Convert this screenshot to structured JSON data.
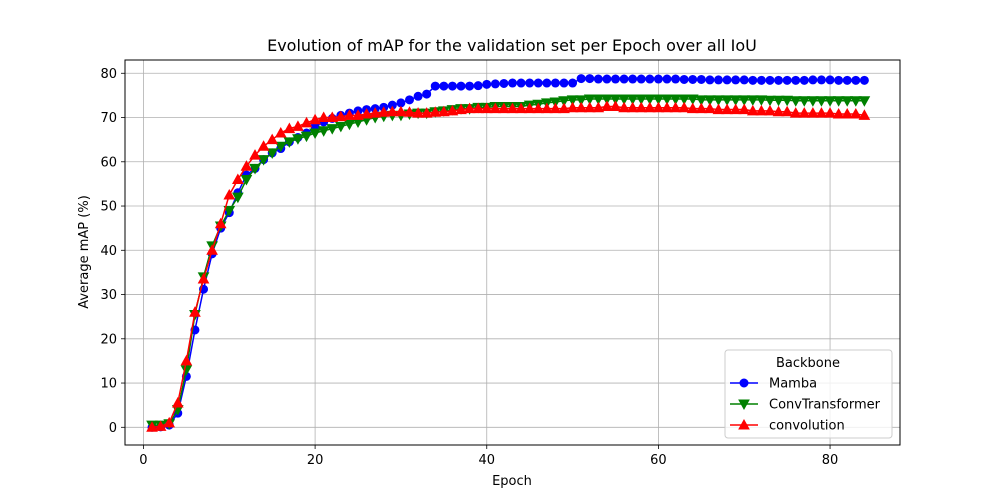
{
  "chart_data": {
    "type": "line",
    "title": "Evolution of mAP for the validation set per Epoch over all IoU",
    "xlabel": "Epoch",
    "ylabel": "Average mAP (%)",
    "xlim": [
      -2.15,
      88.15
    ],
    "ylim": [
      -4.0,
      83.0
    ],
    "xticks": [
      0,
      20,
      40,
      60,
      80
    ],
    "yticks": [
      0,
      10,
      20,
      30,
      40,
      50,
      60,
      70,
      80
    ],
    "grid": true,
    "legend": {
      "title": "Backbone",
      "placement": "lower-right"
    },
    "series": [
      {
        "name": "Mamba",
        "color": "#0000ff",
        "marker": "circle",
        "x": [
          1,
          2,
          3,
          4,
          5,
          6,
          7,
          8,
          9,
          10,
          11,
          12,
          13,
          14,
          15,
          16,
          17,
          18,
          19,
          20,
          21,
          22,
          23,
          24,
          25,
          26,
          27,
          28,
          29,
          30,
          31,
          32,
          33,
          34,
          35,
          36,
          37,
          38,
          39,
          40,
          41,
          42,
          43,
          44,
          45,
          46,
          47,
          48,
          49,
          50,
          51,
          52,
          53,
          54,
          55,
          56,
          57,
          58,
          59,
          60,
          61,
          62,
          63,
          64,
          65,
          66,
          67,
          68,
          69,
          70,
          71,
          72,
          73,
          74,
          75,
          76,
          77,
          78,
          79,
          80,
          81,
          82,
          83,
          84
        ],
        "values": [
          0.0,
          0.1,
          0.5,
          3.2,
          11.5,
          22.0,
          31.2,
          39.2,
          45.0,
          48.5,
          53.0,
          57.0,
          58.5,
          60.5,
          62.0,
          63.0,
          64.5,
          65.5,
          66.5,
          68.0,
          69.0,
          69.8,
          70.5,
          71.0,
          71.5,
          71.8,
          72.0,
          72.3,
          72.8,
          73.3,
          74.0,
          74.8,
          75.3,
          77.1,
          77.1,
          77.1,
          77.1,
          77.1,
          77.2,
          77.5,
          77.6,
          77.7,
          77.8,
          77.8,
          77.8,
          77.8,
          77.8,
          77.8,
          77.8,
          77.8,
          78.8,
          78.8,
          78.7,
          78.7,
          78.7,
          78.7,
          78.7,
          78.7,
          78.7,
          78.7,
          78.7,
          78.7,
          78.6,
          78.6,
          78.6,
          78.5,
          78.5,
          78.5,
          78.5,
          78.5,
          78.4,
          78.4,
          78.4,
          78.4,
          78.4,
          78.4,
          78.4,
          78.5,
          78.5,
          78.5,
          78.4,
          78.4,
          78.4,
          78.4
        ]
      },
      {
        "name": "ConvTransformer",
        "color": "#008000",
        "marker": "triangle-down",
        "x": [
          1,
          2,
          3,
          4,
          5,
          6,
          7,
          8,
          9,
          10,
          11,
          12,
          13,
          14,
          15,
          16,
          17,
          18,
          19,
          20,
          21,
          22,
          23,
          24,
          25,
          26,
          27,
          28,
          29,
          30,
          31,
          32,
          33,
          34,
          35,
          36,
          37,
          38,
          39,
          40,
          41,
          42,
          43,
          44,
          45,
          46,
          47,
          48,
          49,
          50,
          51,
          52,
          53,
          54,
          55,
          56,
          57,
          58,
          59,
          60,
          61,
          62,
          63,
          64,
          65,
          66,
          67,
          68,
          69,
          70,
          71,
          72,
          73,
          74,
          75,
          76,
          77,
          78,
          79,
          80,
          81,
          82,
          83,
          84
        ],
        "values": [
          0.5,
          0.5,
          0.8,
          4.0,
          13.0,
          25.5,
          34.0,
          41.0,
          45.5,
          49.0,
          52.0,
          56.0,
          58.5,
          60.5,
          62.0,
          63.5,
          64.5,
          65.2,
          65.8,
          66.5,
          67.0,
          67.5,
          68.0,
          68.5,
          69.0,
          69.5,
          70.0,
          70.3,
          70.5,
          70.5,
          70.8,
          71.0,
          71.0,
          71.3,
          71.5,
          71.8,
          72.0,
          72.0,
          72.3,
          72.3,
          72.5,
          72.5,
          72.5,
          72.5,
          72.8,
          73.0,
          73.3,
          73.5,
          73.8,
          74.0,
          74.0,
          74.2,
          74.2,
          74.2,
          74.2,
          74.2,
          74.2,
          74.2,
          74.2,
          74.2,
          74.2,
          74.2,
          74.2,
          74.2,
          74.0,
          74.0,
          74.0,
          74.0,
          74.0,
          74.0,
          74.0,
          74.0,
          73.9,
          73.9,
          73.9,
          73.8,
          73.8,
          73.8,
          73.8,
          73.8,
          73.8,
          73.8,
          73.8,
          73.8
        ]
      },
      {
        "name": "convolution",
        "color": "#ff0000",
        "marker": "triangle-up",
        "x": [
          1,
          2,
          3,
          4,
          5,
          6,
          7,
          8,
          9,
          10,
          11,
          12,
          13,
          14,
          15,
          16,
          17,
          18,
          19,
          20,
          21,
          22,
          23,
          24,
          25,
          26,
          27,
          28,
          29,
          30,
          31,
          32,
          33,
          34,
          35,
          36,
          37,
          38,
          39,
          40,
          41,
          42,
          43,
          44,
          45,
          46,
          47,
          48,
          49,
          50,
          51,
          52,
          53,
          54,
          55,
          56,
          57,
          58,
          59,
          60,
          61,
          62,
          63,
          64,
          65,
          66,
          67,
          68,
          69,
          70,
          71,
          72,
          73,
          74,
          75,
          76,
          77,
          78,
          79,
          80,
          81,
          82,
          83,
          84
        ],
        "values": [
          0.0,
          0.2,
          1.0,
          5.5,
          15.0,
          26.0,
          33.5,
          40.0,
          46.0,
          52.5,
          56.0,
          59.0,
          61.5,
          63.5,
          65.0,
          66.5,
          67.5,
          68.0,
          68.8,
          69.5,
          70.0,
          70.0,
          70.2,
          70.5,
          70.5,
          70.8,
          71.0,
          71.2,
          71.3,
          71.3,
          71.2,
          71.0,
          71.0,
          71.2,
          71.3,
          71.5,
          71.8,
          72.0,
          72.0,
          72.0,
          72.0,
          72.0,
          72.0,
          72.0,
          72.0,
          72.0,
          72.0,
          72.0,
          72.0,
          72.2,
          72.2,
          72.2,
          72.2,
          72.5,
          72.5,
          72.2,
          72.2,
          72.2,
          72.2,
          72.2,
          72.2,
          72.2,
          72.2,
          72.0,
          72.0,
          72.0,
          71.8,
          71.8,
          71.8,
          71.8,
          71.5,
          71.5,
          71.5,
          71.3,
          71.3,
          71.0,
          71.0,
          71.0,
          71.0,
          71.0,
          70.8,
          70.8,
          70.8,
          70.5
        ]
      }
    ]
  }
}
